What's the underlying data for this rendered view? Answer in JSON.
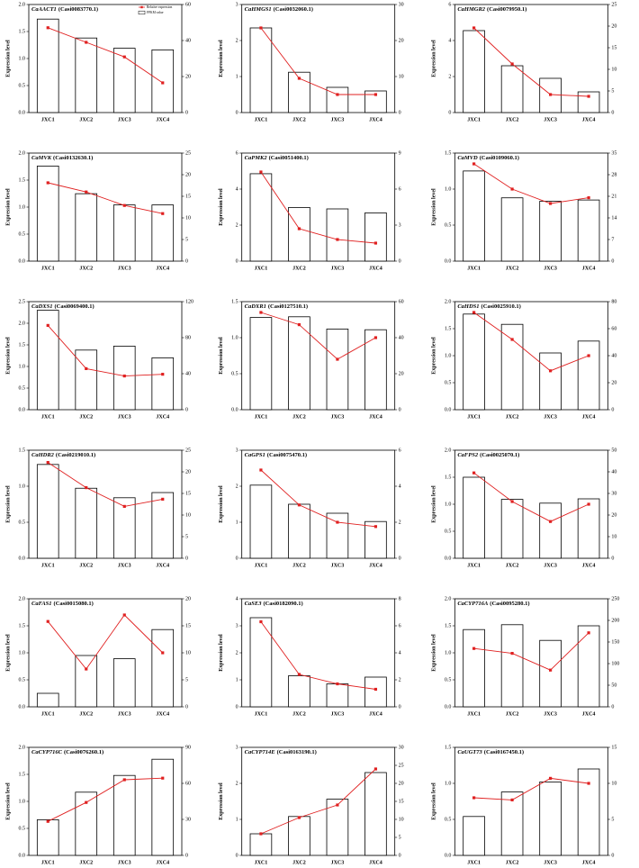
{
  "chart_data": [
    {
      "type": "bar-line",
      "gene": "CaAACT1",
      "gene_id": "(Casi0083770.1)",
      "y_label": "Expression level",
      "categories": [
        "JXC1",
        "JXC2",
        "JXC3",
        "JXC4"
      ],
      "ylim": [
        0,
        2
      ],
      "yticks": [
        {
          "value": 0,
          "label": "0.0"
        },
        {
          "value": 0.5,
          "label": "0.5"
        },
        {
          "value": 1,
          "label": "1.0"
        },
        {
          "value": 1.5,
          "label": "1.5"
        },
        {
          "value": 2,
          "label": "2.0"
        }
      ],
      "y2lim": [
        0,
        60
      ],
      "y2ticks": [
        0,
        20,
        40,
        60
      ],
      "legend": "upper right",
      "series": [
        {
          "name": "FPKM value",
          "type": "bar",
          "axis": "y2",
          "color": "#ffffff",
          "values": [
            51.9,
            41.4,
            35.7,
            34.8
          ]
        },
        {
          "name": "Relative expression",
          "type": "line",
          "axis": "y",
          "color": "#e02020",
          "values": [
            1.57,
            1.3,
            1.03,
            0.55
          ]
        }
      ]
    },
    {
      "type": "bar-line",
      "gene": "CaHMGS1",
      "gene_id": "(Casi0032060.1)",
      "y_label": "Expression level",
      "categories": [
        "JXC1",
        "JXC2",
        "JXC3",
        "JXC4"
      ],
      "ylim": [
        0,
        3
      ],
      "yticks": [
        0,
        1,
        2,
        3
      ],
      "y2lim": [
        0,
        30
      ],
      "y2ticks": [
        0,
        10,
        20,
        30
      ],
      "series": [
        {
          "type": "bar",
          "axis": "y2",
          "color": "#ffffff",
          "values": [
            23.5,
            11.2,
            7,
            6
          ]
        },
        {
          "type": "line",
          "axis": "y",
          "color": "#e02020",
          "values": [
            2.35,
            0.95,
            0.5,
            0.5
          ]
        }
      ]
    },
    {
      "type": "bar-line",
      "gene": "CaHMGR2",
      "gene_id": "(Casi0079950.1)",
      "y_label": "Expression level",
      "categories": [
        "JXC1",
        "JXC2",
        "JXC3",
        "JXC4"
      ],
      "ylim": [
        0,
        6
      ],
      "yticks": [
        0,
        2,
        4,
        6
      ],
      "y2lim": [
        0,
        25
      ],
      "y2ticks": [
        0,
        5,
        10,
        15,
        20,
        25
      ],
      "series": [
        {
          "type": "bar",
          "axis": "y2",
          "color": "#ffffff",
          "values": [
            18.96,
            10.83,
            7.92,
            4.79
          ]
        },
        {
          "type": "line",
          "axis": "y",
          "color": "#e02020",
          "values": [
            4.7,
            2.7,
            1.0,
            0.9
          ]
        }
      ]
    },
    {
      "type": "bar-line",
      "gene": "CaMVK",
      "gene_id": "(Casi0132630.1)",
      "y_label": "Expression level",
      "categories": [
        "JXC1",
        "JXC2",
        "JXC3",
        "JXC4"
      ],
      "ylim": [
        0,
        2
      ],
      "yticks": [
        {
          "value": 0,
          "label": "0.0"
        },
        {
          "value": 0.5,
          "label": "0.5"
        },
        {
          "value": 1,
          "label": "1.0"
        },
        {
          "value": 1.5,
          "label": "1.5"
        },
        {
          "value": 2,
          "label": "2.0"
        }
      ],
      "y2lim": [
        0,
        25
      ],
      "y2ticks": [
        0,
        5,
        10,
        15,
        20,
        25
      ],
      "series": [
        {
          "type": "bar",
          "axis": "y2",
          "color": "#ffffff",
          "values": [
            22,
            15.6,
            13,
            13
          ]
        },
        {
          "type": "line",
          "axis": "y",
          "color": "#e02020",
          "values": [
            1.45,
            1.28,
            1.03,
            0.88
          ]
        }
      ]
    },
    {
      "type": "bar-line",
      "gene": "CaPMK2",
      "gene_id": "(Casi0051400.1)",
      "y_label": "Expression level",
      "categories": [
        "JXC1",
        "JXC2",
        "JXC3",
        "JXC4"
      ],
      "ylim": [
        0,
        6
      ],
      "yticks": [
        0,
        2,
        4,
        6
      ],
      "y2lim": [
        0,
        9
      ],
      "y2ticks": [
        0,
        3,
        6,
        9
      ],
      "series": [
        {
          "type": "bar",
          "axis": "y2",
          "color": "#ffffff",
          "values": [
            7.28,
            4.47,
            4.35,
            4.02
          ]
        },
        {
          "type": "line",
          "axis": "y",
          "color": "#e02020",
          "values": [
            4.95,
            1.8,
            1.2,
            1.0
          ]
        }
      ]
    },
    {
      "type": "bar-line",
      "gene": "CaMVD",
      "gene_id": "(Casi0109060.1)",
      "y_label": "Expression level",
      "categories": [
        "JXC1",
        "JXC2",
        "JXC3",
        "JXC4"
      ],
      "ylim": [
        0,
        1.5
      ],
      "yticks": [
        {
          "value": 0,
          "label": "0.0"
        },
        {
          "value": 0.5,
          "label": "0.5"
        },
        {
          "value": 1,
          "label": "1.0"
        },
        {
          "value": 1.5,
          "label": "1.5"
        }
      ],
      "y2lim": [
        0,
        35
      ],
      "y2ticks": [
        0,
        7,
        14,
        21,
        28,
        35
      ],
      "series": [
        {
          "type": "bar",
          "axis": "y2",
          "color": "#ffffff",
          "values": [
            29.2,
            20.5,
            19.4,
            19.8
          ]
        },
        {
          "type": "line",
          "axis": "y",
          "color": "#e02020",
          "values": [
            1.35,
            1.0,
            0.8,
            0.88
          ]
        }
      ]
    },
    {
      "type": "bar-line",
      "gene": "CaDXS1",
      "gene_id": "(Casi0069400.1)",
      "y_label": "Expression level",
      "categories": [
        "JXC1",
        "JXC2",
        "JXC3",
        "JXC4"
      ],
      "ylim": [
        0,
        2.5
      ],
      "yticks": [
        {
          "value": 0,
          "label": "0.0"
        },
        {
          "value": 0.5,
          "label": "0.5"
        },
        {
          "value": 1,
          "label": "1.0"
        },
        {
          "value": 1.5,
          "label": "1.5"
        },
        {
          "value": 2,
          "label": "2.0"
        },
        {
          "value": 2.5,
          "label": "2.5"
        }
      ],
      "y2lim": [
        0,
        120
      ],
      "y2ticks": [
        0,
        40,
        80,
        120
      ],
      "series": [
        {
          "type": "bar",
          "axis": "y2",
          "color": "#ffffff",
          "values": [
            110.4,
            66.2,
            70.6,
            57.6
          ]
        },
        {
          "type": "line",
          "axis": "y",
          "color": "#e02020",
          "values": [
            1.95,
            0.95,
            0.78,
            0.82
          ]
        }
      ]
    },
    {
      "type": "bar-line",
      "gene": "CaDXR1",
      "gene_id": "(Casi0127510.1)",
      "y_label": "Expression level",
      "categories": [
        "JXC1",
        "JXC2",
        "JXC3",
        "JXC4"
      ],
      "ylim": [
        0,
        1.5
      ],
      "yticks": [
        {
          "value": 0,
          "label": "0.0"
        },
        {
          "value": 0.5,
          "label": "0.5"
        },
        {
          "value": 1,
          "label": "1.0"
        },
        {
          "value": 1.5,
          "label": "1.5"
        }
      ],
      "y2lim": [
        0,
        60
      ],
      "y2ticks": [
        0,
        20,
        40,
        60
      ],
      "series": [
        {
          "type": "bar",
          "axis": "y2",
          "color": "#ffffff",
          "values": [
            51.2,
            51.6,
            44.8,
            44.4
          ]
        },
        {
          "type": "line",
          "axis": "y",
          "color": "#e02020",
          "values": [
            1.35,
            1.18,
            0.7,
            1.0
          ]
        }
      ]
    },
    {
      "type": "bar-line",
      "gene": "CaHDS1",
      "gene_id": "(Casi0025910.1)",
      "y_label": "Expression level",
      "categories": [
        "JXC1",
        "JXC2",
        "JXC3",
        "JXC4"
      ],
      "ylim": [
        0,
        2
      ],
      "yticks": [
        {
          "value": 0,
          "label": "0.0"
        },
        {
          "value": 0.5,
          "label": "0.5"
        },
        {
          "value": 1,
          "label": "1.0"
        },
        {
          "value": 1.5,
          "label": "1.5"
        },
        {
          "value": 2,
          "label": "2.0"
        }
      ],
      "y2lim": [
        0,
        80
      ],
      "y2ticks": [
        0,
        20,
        40,
        60,
        80
      ],
      "series": [
        {
          "type": "bar",
          "axis": "y2",
          "color": "#ffffff",
          "values": [
            70.8,
            63.2,
            42,
            50.8
          ]
        },
        {
          "type": "line",
          "axis": "y",
          "color": "#e02020",
          "values": [
            1.8,
            1.3,
            0.72,
            1.0
          ]
        }
      ]
    },
    {
      "type": "bar-line",
      "gene": "CaHDR2",
      "gene_id": "(Casi0219010.1)",
      "y_label": "Expression level",
      "categories": [
        "JXC1",
        "JXC2",
        "JXC3",
        "JXC4"
      ],
      "ylim": [
        0,
        1.5
      ],
      "yticks": [
        {
          "value": 0,
          "label": "0.0"
        },
        {
          "value": 0.5,
          "label": "0.5"
        },
        {
          "value": 1,
          "label": "1.0"
        },
        {
          "value": 1.5,
          "label": "1.5"
        }
      ],
      "y2lim": [
        0,
        25
      ],
      "y2ticks": [
        0,
        5,
        10,
        15,
        20,
        25
      ],
      "series": [
        {
          "type": "bar",
          "axis": "y2",
          "color": "#ffffff",
          "values": [
            21.7,
            16.2,
            14.0,
            15.2
          ]
        },
        {
          "type": "line",
          "axis": "y",
          "color": "#e02020",
          "values": [
            1.33,
            0.98,
            0.72,
            0.82
          ]
        }
      ]
    },
    {
      "type": "bar-line",
      "gene": "CaGPS1",
      "gene_id": "(Casi0075470.1)",
      "y_label": "Expression level",
      "categories": [
        "JXC1",
        "JXC2",
        "JXC3",
        "JXC4"
      ],
      "ylim": [
        0,
        3
      ],
      "yticks": [
        0,
        1,
        2,
        3
      ],
      "y2lim": [
        0,
        6
      ],
      "y2ticks": [
        0,
        2,
        4,
        6
      ],
      "series": [
        {
          "type": "bar",
          "axis": "y2",
          "color": "#ffffff",
          "values": [
            4.06,
            3.0,
            2.5,
            2.04
          ]
        },
        {
          "type": "line",
          "axis": "y",
          "color": "#e02020",
          "values": [
            2.45,
            1.48,
            1.0,
            0.88
          ]
        }
      ]
    },
    {
      "type": "bar-line",
      "gene": "CaFPS2",
      "gene_id": "(Casi0025070.1)",
      "y_label": "Expression level",
      "categories": [
        "JXC1",
        "JXC2",
        "JXC3",
        "JXC4"
      ],
      "ylim": [
        0,
        2
      ],
      "yticks": [
        {
          "value": 0,
          "label": "0.0"
        },
        {
          "value": 0.5,
          "label": "0.5"
        },
        {
          "value": 1,
          "label": "1.0"
        },
        {
          "value": 1.5,
          "label": "1.5"
        },
        {
          "value": 2,
          "label": "2.0"
        }
      ],
      "y2lim": [
        0,
        50
      ],
      "y2ticks": [
        0,
        10,
        20,
        30,
        40,
        50
      ],
      "series": [
        {
          "type": "bar",
          "axis": "y2",
          "color": "#ffffff",
          "values": [
            37.5,
            27.25,
            25.5,
            27.5
          ]
        },
        {
          "type": "line",
          "axis": "y",
          "color": "#e02020",
          "values": [
            1.58,
            1.05,
            0.68,
            1.0
          ]
        }
      ]
    },
    {
      "type": "bar-line",
      "gene": "CaFAS1",
      "gene_id": "(Casi0015080.1)",
      "y_label": "Expression level",
      "categories": [
        "JXC1",
        "JXC2",
        "JXC3",
        "JXC4"
      ],
      "ylim": [
        0,
        2
      ],
      "yticks": [
        {
          "value": 0,
          "label": "0.0"
        },
        {
          "value": 0.5,
          "label": "0.5"
        },
        {
          "value": 1,
          "label": "1.0"
        },
        {
          "value": 1.5,
          "label": "1.5"
        },
        {
          "value": 2,
          "label": "2.0"
        }
      ],
      "y2lim": [
        0,
        20
      ],
      "y2ticks": [
        0,
        5,
        10,
        15,
        20
      ],
      "series": [
        {
          "type": "bar",
          "axis": "y2",
          "color": "#ffffff",
          "values": [
            2.5,
            9.5,
            8.9,
            14.3
          ]
        },
        {
          "type": "line",
          "axis": "y",
          "color": "#e02020",
          "values": [
            1.58,
            0.7,
            1.7,
            1.0
          ]
        }
      ]
    },
    {
      "type": "bar-line",
      "gene": "CaSE3",
      "gene_id": "(Casi0182090.1)",
      "y_label": "Expression level",
      "categories": [
        "JXC1",
        "JXC2",
        "JXC3",
        "JXC4"
      ],
      "ylim": [
        0,
        4
      ],
      "yticks": [
        0,
        1,
        2,
        3,
        4
      ],
      "y2lim": [
        0,
        8
      ],
      "y2ticks": [
        0,
        2,
        4,
        6,
        8
      ],
      "series": [
        {
          "type": "bar",
          "axis": "y2",
          "color": "#ffffff",
          "values": [
            6.6,
            2.3,
            1.7,
            2.2
          ]
        },
        {
          "type": "line",
          "axis": "y",
          "color": "#e02020",
          "values": [
            3.15,
            1.2,
            0.85,
            0.65
          ]
        }
      ]
    },
    {
      "type": "bar-line",
      "gene": "CaCYP716A",
      "gene_id": "(Casi0095280.1)",
      "y_label": "Expression level",
      "categories": [
        "JXC1",
        "JXC2",
        "JXC3",
        "JXC4"
      ],
      "ylim": [
        0,
        2
      ],
      "yticks": [
        {
          "value": 0,
          "label": "0.0"
        },
        {
          "value": 0.5,
          "label": "0.5"
        },
        {
          "value": 1,
          "label": "1.0"
        },
        {
          "value": 1.5,
          "label": "1.5"
        },
        {
          "value": 2,
          "label": "2.0"
        }
      ],
      "y2lim": [
        0,
        250
      ],
      "y2ticks": [
        0,
        50,
        100,
        150,
        200,
        250
      ],
      "series": [
        {
          "type": "bar",
          "axis": "y2",
          "color": "#ffffff",
          "values": [
            178.75,
            190,
            153.75,
            187.5
          ]
        },
        {
          "type": "line",
          "axis": "y",
          "color": "#e02020",
          "values": [
            1.08,
            0.99,
            0.68,
            1.37
          ]
        }
      ]
    },
    {
      "type": "bar-line",
      "gene": "CaCYP716C",
      "gene_id": "(Casi0076260.1)",
      "y_label": "Expression level",
      "categories": [
        "JXC1",
        "JXC2",
        "JXC3",
        "JXC4"
      ],
      "ylim": [
        0,
        2
      ],
      "yticks": [
        {
          "value": 0,
          "label": "0.0"
        },
        {
          "value": 0.5,
          "label": "0.5"
        },
        {
          "value": 1,
          "label": "1.0"
        },
        {
          "value": 1.5,
          "label": "1.5"
        },
        {
          "value": 2,
          "label": "2.0"
        }
      ],
      "y2lim": [
        0,
        90
      ],
      "y2ticks": [
        0,
        30,
        60,
        90
      ],
      "series": [
        {
          "type": "bar",
          "axis": "y2",
          "color": "#ffffff",
          "values": [
            29.7,
            52.65,
            66.6,
            80.1
          ]
        },
        {
          "type": "line",
          "axis": "y",
          "color": "#e02020",
          "values": [
            0.63,
            0.98,
            1.4,
            1.43
          ]
        }
      ]
    },
    {
      "type": "bar-line",
      "gene": "CaCYP714E",
      "gene_id": "(Casi0163190.1)",
      "y_label": "Expression level",
      "categories": [
        "JXC1",
        "JXC2",
        "JXC3",
        "JXC4"
      ],
      "ylim": [
        0,
        3
      ],
      "yticks": [
        0,
        1,
        2,
        3
      ],
      "y2lim": [
        0,
        30
      ],
      "y2ticks": [
        0,
        5,
        10,
        15,
        20,
        25,
        30
      ],
      "series": [
        {
          "type": "bar",
          "axis": "y2",
          "color": "#ffffff",
          "values": [
            6,
            10.8,
            15.6,
            23
          ]
        },
        {
          "type": "line",
          "axis": "y",
          "color": "#e02020",
          "values": [
            0.6,
            1.05,
            1.4,
            2.4
          ]
        }
      ]
    },
    {
      "type": "bar-line",
      "gene": "CaUGT73",
      "gene_id": "(Casi0167450.1)",
      "y_label": "Expression level",
      "categories": [
        "JXC1",
        "JXC2",
        "JXC3",
        "JXC4"
      ],
      "ylim": [
        0,
        1.5
      ],
      "yticks": [
        {
          "value": 0,
          "label": "0.0"
        },
        {
          "value": 0.5,
          "label": "0.5"
        },
        {
          "value": 1,
          "label": "1.0"
        },
        {
          "value": 1.5,
          "label": "1.5"
        }
      ],
      "y2lim": [
        0,
        15
      ],
      "y2ticks": [
        0,
        5,
        10,
        15
      ],
      "series": [
        {
          "type": "bar",
          "axis": "y2",
          "color": "#ffffff",
          "values": [
            5.4,
            8.8,
            10.2,
            12
          ]
        },
        {
          "type": "line",
          "axis": "y",
          "color": "#e02020",
          "values": [
            0.8,
            0.77,
            1.07,
            1.0
          ]
        }
      ]
    }
  ]
}
